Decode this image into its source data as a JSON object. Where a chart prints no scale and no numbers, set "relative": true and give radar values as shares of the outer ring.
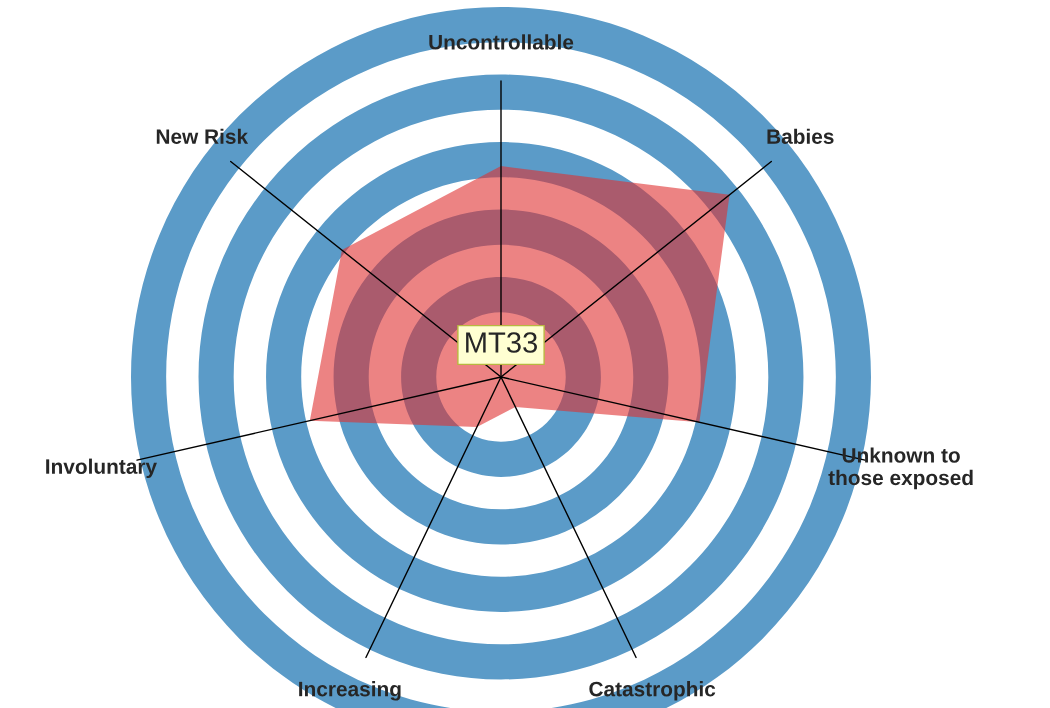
{
  "chart_data": {
    "type": "radar",
    "relative": true,
    "categories": [
      "Uncontrollable",
      "Babies",
      "Unknown to\nthose exposed",
      "Catastrophic",
      "Increasing",
      "Involuntary",
      "New Risk"
    ],
    "series": [
      {
        "color": "#e03030",
        "values": [
          0.57,
          0.79,
          0.55,
          0.09,
          0.15,
          0.53,
          0.55
        ]
      }
    ],
    "annotations": [
      "MT33"
    ]
  }
}
